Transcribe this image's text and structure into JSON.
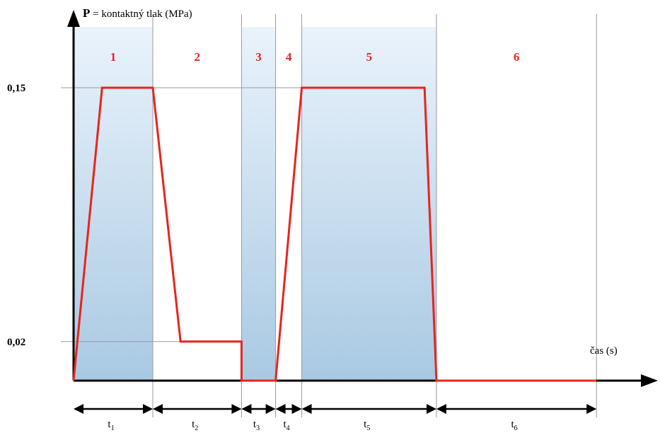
{
  "chart_data": {
    "type": "line",
    "title": "",
    "ylabel_bold": "P",
    "ylabel_rest": " = kontaktný tlak (MPa)",
    "xlabel": "čas (s)",
    "y_ticks": [
      {
        "value": 0.15,
        "label": "0,15"
      },
      {
        "value": 0.02,
        "label": "0,02"
      }
    ],
    "phases": [
      {
        "number": "1",
        "duration_label": "t",
        "duration_sub": "1",
        "shaded": true
      },
      {
        "number": "2",
        "duration_label": "t",
        "duration_sub": "2",
        "shaded": false
      },
      {
        "number": "3",
        "duration_label": "t",
        "duration_sub": "3",
        "shaded": true
      },
      {
        "number": "4",
        "duration_label": "t",
        "duration_sub": "4",
        "shaded": false
      },
      {
        "number": "5",
        "duration_label": "t",
        "duration_sub": "5",
        "shaded": true
      },
      {
        "number": "6",
        "duration_label": "t",
        "duration_sub": "6",
        "shaded": false
      }
    ],
    "series": [
      {
        "color": "#e8241c",
        "points": [
          [
            0,
            0.0
          ],
          [
            0.36,
            0.15
          ],
          [
            1.0,
            0.15
          ],
          [
            1.35,
            0.02
          ],
          [
            2.12,
            0.02
          ],
          [
            2.12,
            0.0
          ],
          [
            2.55,
            0.0
          ],
          [
            2.88,
            0.15
          ],
          [
            4.43,
            0.15
          ],
          [
            4.58,
            0.0
          ],
          [
            6.6,
            0.0
          ]
        ]
      }
    ],
    "phase_boundaries": [
      0,
      1.0,
      2.12,
      2.55,
      2.88,
      4.58,
      6.6
    ],
    "colors": {
      "line": "#e8241c",
      "phase_number": "#e8241c",
      "shade_top": "#eaf3fb",
      "shade_bottom": "#a9c9e3",
      "axis": "#000000",
      "grid": "#9a9a9a"
    }
  }
}
